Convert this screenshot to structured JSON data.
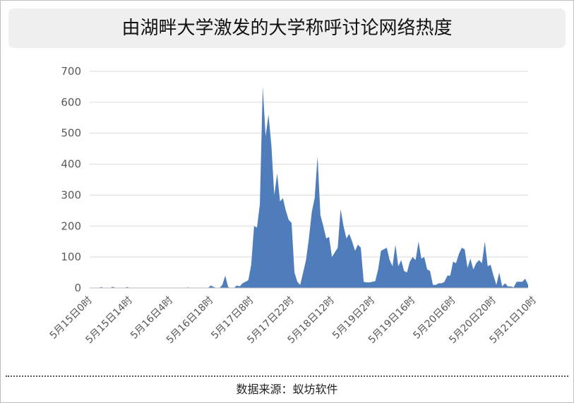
{
  "title": "由湖畔大学激发的大学称呼讨论网络热度",
  "source_text": "数据来源：蚁坊软件",
  "colors": {
    "area": "#4f7dbb",
    "grid": "#d9d9d9",
    "axis_text": "#595959",
    "title_bg": "#efefef"
  },
  "chart_data": {
    "type": "area",
    "title": "由湖畔大学激发的大学称呼讨论网络热度",
    "xlabel": "",
    "ylabel": "",
    "ylim": [
      0,
      700
    ],
    "yticks": [
      0,
      100,
      200,
      300,
      400,
      500,
      600,
      700
    ],
    "grid": true,
    "legend": "none",
    "x_start": "5月15日0时",
    "x_step": "1 hour",
    "x_tick_labels": [
      "5月15日0时",
      "5月15日14时",
      "5月16日4时",
      "5月16日18时",
      "5月17日8时",
      "5月17日22时",
      "5月18日12时",
      "5月19日2时",
      "5月19日16时",
      "5月20日6时",
      "5月20日20时",
      "5月21日10时"
    ],
    "x_tick_index": [
      0,
      14,
      28,
      42,
      56,
      70,
      84,
      98,
      112,
      126,
      140,
      154
    ],
    "values": [
      0,
      0,
      0,
      0,
      3,
      0,
      0,
      0,
      4,
      0,
      0,
      0,
      0,
      3,
      0,
      0,
      0,
      0,
      0,
      0,
      0,
      0,
      0,
      0,
      0,
      0,
      0,
      0,
      0,
      0,
      0,
      0,
      0,
      0,
      2,
      0,
      0,
      0,
      0,
      0,
      0,
      0,
      8,
      3,
      0,
      0,
      10,
      40,
      3,
      0,
      0,
      8,
      5,
      15,
      20,
      25,
      75,
      200,
      195,
      270,
      650,
      490,
      560,
      460,
      300,
      370,
      280,
      290,
      250,
      220,
      210,
      50,
      20,
      10,
      50,
      90,
      160,
      245,
      290,
      425,
      235,
      200,
      160,
      165,
      100,
      115,
      130,
      255,
      200,
      160,
      175,
      150,
      120,
      140,
      130,
      20,
      18,
      18,
      20,
      22,
      60,
      120,
      125,
      130,
      90,
      70,
      140,
      70,
      90,
      55,
      50,
      85,
      100,
      90,
      150,
      95,
      100,
      60,
      55,
      10,
      10,
      15,
      15,
      20,
      40,
      40,
      85,
      80,
      110,
      130,
      125,
      65,
      95,
      60,
      80,
      90,
      80,
      150,
      70,
      75,
      40,
      10,
      50,
      5,
      15,
      5,
      5,
      2,
      20,
      20,
      20,
      30,
      10
    ]
  }
}
